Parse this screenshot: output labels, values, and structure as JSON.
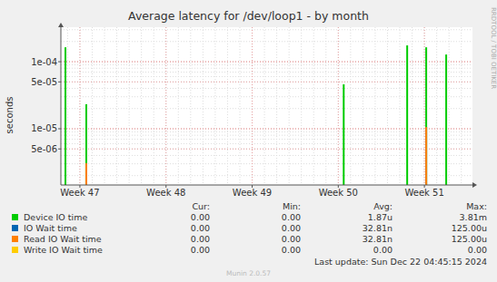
{
  "chart_data": {
    "type": "bar",
    "title": "Average latency for /dev/loop1 - by month",
    "y_label": "seconds",
    "log": "y",
    "grid": true,
    "legend": "bottom",
    "x": [
      46.832,
      47.074,
      50.063,
      50.8,
      51.021,
      51.253
    ],
    "xlim": [
      46.779,
      51.558
    ],
    "xticks": [
      {
        "value": 47,
        "label": "Week 47"
      },
      {
        "value": 48,
        "label": "Week 48"
      },
      {
        "value": 49,
        "label": "Week 49"
      },
      {
        "value": 50,
        "label": "Week 50"
      },
      {
        "value": 51,
        "label": "Week 51"
      }
    ],
    "ylim": [
      1.45e-06,
      0.000327
    ],
    "yticks": [
      {
        "value": 5e-06,
        "label": "5e-06"
      },
      {
        "value": 1e-05,
        "label": "1e-05"
      },
      {
        "value": 5e-05,
        "label": "5e-05"
      },
      {
        "value": 0.0001,
        "label": "1e-04"
      }
    ],
    "legend_columns": [
      "Cur:",
      "Min:",
      "Avg:",
      "Max:"
    ],
    "series": [
      {
        "name": "Device IO time",
        "color": "#00cc00",
        "values": [
          0.000164,
          2.32e-05,
          4.6e-05,
          0.000175,
          0.000164,
          0.000128
        ],
        "cur": "0.00",
        "min": "0.00",
        "avg": "1.87u",
        "max": "3.81m"
      },
      {
        "name": "IO Wait time",
        "color": "#0066b3",
        "values": [
          null,
          3.06e-06,
          null,
          null,
          1.06e-05,
          null
        ],
        "cur": "0.00",
        "min": "0.00",
        "avg": "32.81n",
        "max": "125.00u"
      },
      {
        "name": "Read IO Wait time",
        "color": "#ff8000",
        "values": [
          null,
          3.06e-06,
          null,
          null,
          1.06e-05,
          null
        ],
        "cur": "0.00",
        "min": "0.00",
        "avg": "32.81n",
        "max": "125.00u"
      },
      {
        "name": "Write IO Wait time",
        "color": "#ffcc00",
        "values": [
          null,
          null,
          null,
          null,
          null,
          null
        ],
        "cur": "0.00",
        "min": "0.00",
        "avg": "0.00",
        "max": "0.00"
      }
    ],
    "last_update": "Last update: Sun Dec 22 04:45:15 2024",
    "footer": "Munin 2.0.57",
    "watermark": "RRDTOOL / TOBI OETIKER"
  }
}
